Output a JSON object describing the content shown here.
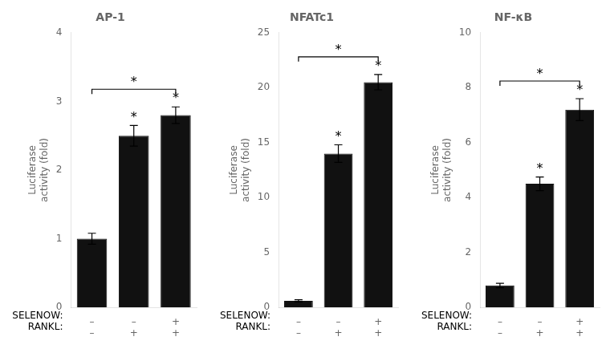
{
  "chart_data": [
    {
      "type": "bar",
      "title": "AP-1",
      "ylabel": "Luciferase\nactivity (fold)",
      "categories": [
        "–\n–",
        "–\n+",
        "+\n+"
      ],
      "row_labels": [
        "SELENOW:",
        "RANKL:"
      ],
      "values": [
        1.0,
        2.5,
        2.8
      ],
      "errors": [
        0.08,
        0.15,
        0.12
      ],
      "color": "#111111",
      "ylim": [
        0,
        4
      ],
      "yticks": [
        0,
        1,
        2,
        3,
        4
      ],
      "grid": false,
      "annotations": [
        {
          "text": "*",
          "bar": 1
        },
        {
          "text": "*",
          "bar": 2
        },
        {
          "text": "*",
          "from": 0,
          "to": 2
        }
      ]
    },
    {
      "type": "bar",
      "title": "NFATc1",
      "ylabel": "Luciferase\nactivity (fold)",
      "categories": [
        "–\n–",
        "–\n+",
        "+\n+"
      ],
      "row_labels": [
        "SELENOW:",
        "RANKL:"
      ],
      "values": [
        0.6,
        14.0,
        20.5
      ],
      "errors": [
        0.1,
        0.8,
        0.7
      ],
      "color": "#111111",
      "ylim": [
        0,
        25
      ],
      "yticks": [
        0,
        5,
        10,
        15,
        20,
        25
      ],
      "grid": false,
      "annotations": [
        {
          "text": "*",
          "bar": 1
        },
        {
          "text": "*",
          "bar": 2
        },
        {
          "text": "*",
          "from": 0,
          "to": 2
        }
      ]
    },
    {
      "type": "bar",
      "title": "NF-κB",
      "ylabel": "Luciferase\nactivity (fold)",
      "categories": [
        "–\n–",
        "–\n+",
        "+\n+"
      ],
      "row_labels": [
        "SELENOW:",
        "RANKL:"
      ],
      "values": [
        0.8,
        4.5,
        7.2
      ],
      "errors": [
        0.08,
        0.25,
        0.4
      ],
      "color": "#111111",
      "ylim": [
        0,
        10
      ],
      "yticks": [
        0,
        2,
        4,
        6,
        8,
        10
      ],
      "grid": false,
      "annotations": [
        {
          "text": "*",
          "bar": 1
        },
        {
          "text": "*",
          "bar": 2
        },
        {
          "text": "*",
          "from": 0,
          "to": 2
        }
      ]
    }
  ]
}
